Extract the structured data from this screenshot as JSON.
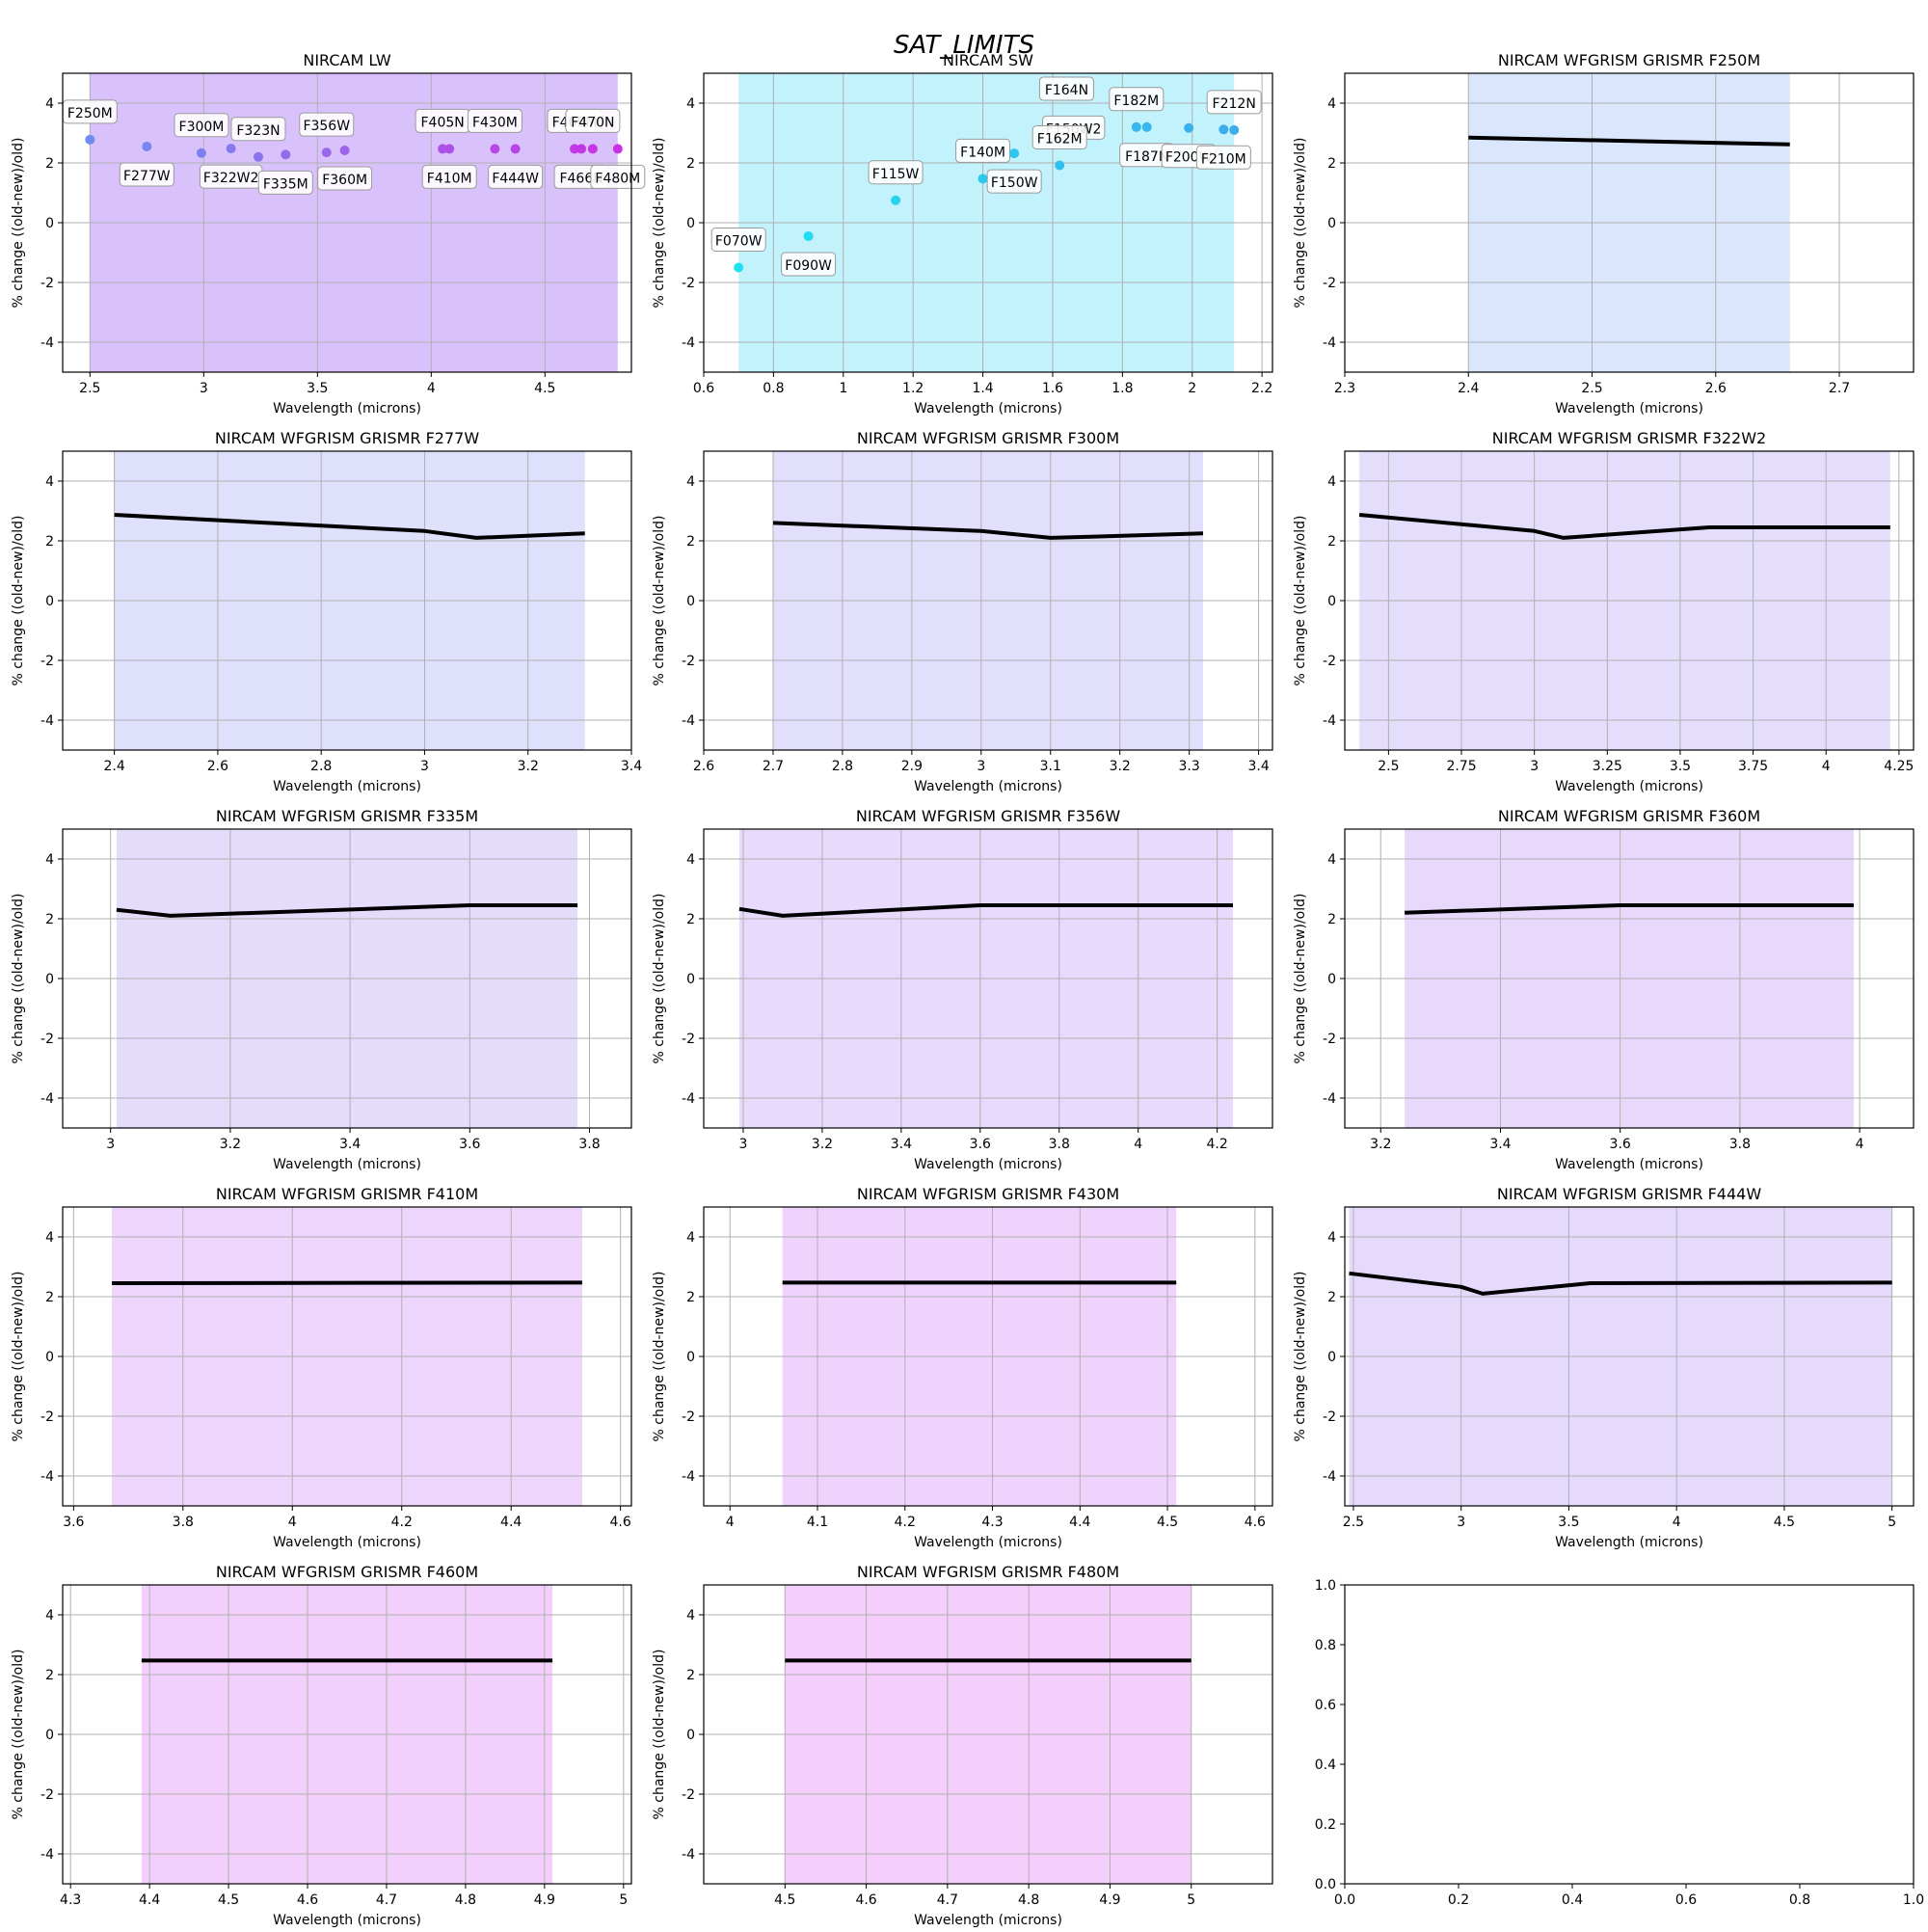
{
  "figure": {
    "title": "SAT_LIMITS"
  },
  "chart_data": [
    {
      "type": "scatter",
      "title": "NIRCAM LW",
      "xlabel": "Wavelength (microns)",
      "ylabel": "% change ((old-new)/old)",
      "xlim": [
        2.38,
        4.88
      ],
      "ylim": [
        -5,
        5
      ],
      "xticks": [
        2.5,
        3,
        3.5,
        4,
        4.5
      ],
      "yticks": [
        -4,
        -2,
        0,
        2,
        4
      ],
      "grid": true,
      "span": [
        2.5,
        4.82
      ],
      "span_color": "#c9a8fb",
      "points": [
        {
          "x": 2.5,
          "y": 2.78,
          "label": "F250M",
          "pos": "above",
          "color": "#6f8cf0"
        },
        {
          "x": 2.75,
          "y": 2.55,
          "label": "F277W",
          "pos": "below",
          "color": "#7787ef"
        },
        {
          "x": 2.99,
          "y": 2.33,
          "label": "F300M",
          "pos": "above",
          "color": "#7f7eee"
        },
        {
          "x": 3.12,
          "y": 2.48,
          "label": "F322W2",
          "pos": "below",
          "color": "#8579ed"
        },
        {
          "x": 3.24,
          "y": 2.2,
          "label": "F323N",
          "pos": "above",
          "color": "#8b73ec"
        },
        {
          "x": 3.36,
          "y": 2.28,
          "label": "F335M",
          "pos": "below",
          "color": "#916deb"
        },
        {
          "x": 3.54,
          "y": 2.35,
          "label": "F356W",
          "pos": "above",
          "color": "#9867ea"
        },
        {
          "x": 3.62,
          "y": 2.42,
          "label": "F360M",
          "pos": "below",
          "color": "#9c62e9"
        },
        {
          "x": 4.05,
          "y": 2.47,
          "label": "F405N",
          "pos": "above",
          "color": "#ab52e8"
        },
        {
          "x": 4.08,
          "y": 2.47,
          "label": "F410M",
          "pos": "below",
          "color": "#ac51e8"
        },
        {
          "x": 4.28,
          "y": 2.47,
          "label": "F430M",
          "pos": "above",
          "color": "#b548e7"
        },
        {
          "x": 4.37,
          "y": 2.47,
          "label": "F444W",
          "pos": "below",
          "color": "#b944e6"
        },
        {
          "x": 4.63,
          "y": 2.47,
          "label": "F460M",
          "pos": "above",
          "color": "#c23ae5"
        },
        {
          "x": 4.66,
          "y": 2.47,
          "label": "F466N",
          "pos": "below",
          "color": "#c338e5"
        },
        {
          "x": 4.71,
          "y": 2.47,
          "label": "F470N",
          "pos": "above",
          "color": "#c635e5"
        },
        {
          "x": 4.82,
          "y": 2.47,
          "label": "F480M",
          "pos": "below",
          "color": "#ca30e4"
        }
      ]
    },
    {
      "type": "scatter",
      "title": "NIRCAM SW",
      "xlabel": "Wavelength (microns)",
      "ylabel": "% change ((old-new)/old)",
      "xlim": [
        0.6,
        2.23
      ],
      "ylim": [
        -5,
        5
      ],
      "xticks": [
        0.6,
        0.8,
        1,
        1.2,
        1.4,
        1.6,
        1.8,
        2,
        2.2
      ],
      "yticks": [
        -4,
        -2,
        0,
        2,
        4
      ],
      "grid": true,
      "span": [
        0.7,
        2.12
      ],
      "span_color": "#a8ecfb",
      "points": [
        {
          "x": 0.7,
          "y": -1.5,
          "label": "F070W",
          "pos": "above",
          "color": "#1ce3f0"
        },
        {
          "x": 0.9,
          "y": -0.45,
          "label": "F090W",
          "pos": "below",
          "color": "#20dcef"
        },
        {
          "x": 1.15,
          "y": 0.75,
          "label": "F115W",
          "pos": "above",
          "color": "#25d3ef"
        },
        {
          "x": 1.4,
          "y": 1.47,
          "label": "F140M",
          "pos": "above",
          "color": "#2bc9ee"
        },
        {
          "x": 1.49,
          "y": 2.32,
          "label": "F150W",
          "pos": "below",
          "color": "#2ec5ee"
        },
        {
          "x": 1.64,
          "y": 4.45,
          "label": "F164N",
          "pos": "none",
          "color": "#2bc9ee"
        },
        {
          "x": 1.66,
          "y": 3.15,
          "label": "F150W2",
          "pos": "none",
          "color": "#2bc9ee"
        },
        {
          "x": 1.62,
          "y": 1.92,
          "label": "F162M",
          "pos": "above",
          "color": "#31c0ed"
        },
        {
          "x": 1.84,
          "y": 3.2,
          "label": "F182M",
          "pos": "above",
          "color": "#37b8ed"
        },
        {
          "x": 1.87,
          "y": 3.2,
          "label": "F187N",
          "pos": "below",
          "color": "#38b6ed"
        },
        {
          "x": 1.99,
          "y": 3.17,
          "label": "F200W",
          "pos": "below",
          "color": "#3bb1ec"
        },
        {
          "x": 2.09,
          "y": 3.12,
          "label": "F210M",
          "pos": "below",
          "color": "#3eadec"
        },
        {
          "x": 2.12,
          "y": 3.1,
          "label": "F212N",
          "pos": "above",
          "color": "#3facec"
        }
      ]
    },
    {
      "type": "line",
      "title": "NIRCAM WFGRISM GRISMR F250M",
      "xlabel": "Wavelength (microns)",
      "ylabel": "% change ((old-new)/old)",
      "xlim": [
        2.3,
        2.76
      ],
      "ylim": [
        -5,
        5
      ],
      "xticks": [
        2.3,
        2.4,
        2.5,
        2.6,
        2.7
      ],
      "yticks": [
        -4,
        -2,
        0,
        2,
        4
      ],
      "grid": true,
      "span": [
        2.4,
        2.66
      ],
      "span_color": "#c9dbfb",
      "x": [
        2.4,
        2.66
      ],
      "y": [
        2.85,
        2.62
      ]
    },
    {
      "type": "line",
      "title": "NIRCAM WFGRISM GRISMR F277W",
      "xlabel": "Wavelength (microns)",
      "ylabel": "% change ((old-new)/old)",
      "xlim": [
        2.3,
        3.4
      ],
      "ylim": [
        -5,
        5
      ],
      "xticks": [
        2.4,
        2.6,
        2.8,
        3,
        3.2,
        3.4
      ],
      "yticks": [
        -4,
        -2,
        0,
        2,
        4
      ],
      "grid": true,
      "span": [
        2.4,
        3.31
      ],
      "span_color": "#d2d3fb",
      "x": [
        2.4,
        3.0,
        3.1,
        3.31
      ],
      "y": [
        2.87,
        2.33,
        2.1,
        2.25
      ]
    },
    {
      "type": "line",
      "title": "NIRCAM WFGRISM GRISMR F300M",
      "xlabel": "Wavelength (microns)",
      "ylabel": "% change ((old-new)/old)",
      "xlim": [
        2.6,
        3.42
      ],
      "ylim": [
        -5,
        5
      ],
      "xticks": [
        2.6,
        2.7,
        2.8,
        2.9,
        3,
        3.1,
        3.2,
        3.3,
        3.4
      ],
      "yticks": [
        -4,
        -2,
        0,
        2,
        4
      ],
      "grid": true,
      "span": [
        2.7,
        3.32
      ],
      "span_color": "#d5d2fb",
      "x": [
        2.7,
        3.0,
        3.1,
        3.32
      ],
      "y": [
        2.6,
        2.33,
        2.1,
        2.25
      ]
    },
    {
      "type": "line",
      "title": "NIRCAM WFGRISM GRISMR F322W2",
      "xlabel": "Wavelength (microns)",
      "ylabel": "% change ((old-new)/old)",
      "xlim": [
        2.35,
        4.3
      ],
      "ylim": [
        -5,
        5
      ],
      "xticks": [
        2.5,
        2.75,
        3,
        3.25,
        3.5,
        3.75,
        4,
        4.25
      ],
      "yticks": [
        -4,
        -2,
        0,
        2,
        4
      ],
      "grid": true,
      "span": [
        2.4,
        4.22
      ],
      "span_color": "#d8cefb",
      "x": [
        2.4,
        3.0,
        3.1,
        3.6,
        4.22
      ],
      "y": [
        2.87,
        2.33,
        2.1,
        2.45,
        2.45
      ]
    },
    {
      "type": "line",
      "title": "NIRCAM WFGRISM GRISMR F335M",
      "xlabel": "Wavelength (microns)",
      "ylabel": "% change ((old-new)/old)",
      "xlim": [
        2.92,
        3.87
      ],
      "ylim": [
        -5,
        5
      ],
      "xticks": [
        3,
        3.2,
        3.4,
        3.6,
        3.8
      ],
      "yticks": [
        -4,
        -2,
        0,
        2,
        4
      ],
      "grid": true,
      "span": [
        3.01,
        3.78
      ],
      "span_color": "#dacdfb",
      "x": [
        3.01,
        3.1,
        3.6,
        3.78
      ],
      "y": [
        2.3,
        2.1,
        2.45,
        2.45
      ]
    },
    {
      "type": "line",
      "title": "NIRCAM WFGRISM GRISMR F356W",
      "xlabel": "Wavelength (microns)",
      "ylabel": "% change ((old-new)/old)",
      "xlim": [
        2.9,
        4.34
      ],
      "ylim": [
        -5,
        5
      ],
      "xticks": [
        3,
        3.2,
        3.4,
        3.6,
        3.8,
        4,
        4.2
      ],
      "yticks": [
        -4,
        -2,
        0,
        2,
        4
      ],
      "grid": true,
      "span": [
        2.99,
        4.24
      ],
      "span_color": "#ddcbfb",
      "x": [
        2.99,
        3.1,
        3.6,
        4.24
      ],
      "y": [
        2.33,
        2.1,
        2.45,
        2.45
      ]
    },
    {
      "type": "line",
      "title": "NIRCAM WFGRISM GRISMR F360M",
      "xlabel": "Wavelength (microns)",
      "ylabel": "% change ((old-new)/old)",
      "xlim": [
        3.14,
        4.09
      ],
      "ylim": [
        -5,
        5
      ],
      "xticks": [
        3.2,
        3.4,
        3.6,
        3.8,
        4
      ],
      "yticks": [
        -4,
        -2,
        0,
        2,
        4
      ],
      "grid": true,
      "span": [
        3.24,
        3.99
      ],
      "span_color": "#dec9fb",
      "x": [
        3.24,
        3.6,
        3.99
      ],
      "y": [
        2.2,
        2.45,
        2.45
      ]
    },
    {
      "type": "line",
      "title": "NIRCAM WFGRISM GRISMR F410M",
      "xlabel": "Wavelength (microns)",
      "ylabel": "% change ((old-new)/old)",
      "xlim": [
        3.58,
        4.62
      ],
      "ylim": [
        -5,
        5
      ],
      "xticks": [
        3.6,
        3.8,
        4,
        4.2,
        4.4,
        4.6
      ],
      "yticks": [
        -4,
        -2,
        0,
        2,
        4
      ],
      "grid": true,
      "span": [
        3.67,
        4.53
      ],
      "span_color": "#e6c3fb",
      "x": [
        3.67,
        4.53
      ],
      "y": [
        2.45,
        2.47
      ]
    },
    {
      "type": "line",
      "title": "NIRCAM WFGRISM GRISMR F430M",
      "xlabel": "Wavelength (microns)",
      "ylabel": "% change ((old-new)/old)",
      "xlim": [
        3.97,
        4.62
      ],
      "ylim": [
        -5,
        5
      ],
      "xticks": [
        4,
        4.1,
        4.2,
        4.3,
        4.4,
        4.5,
        4.6
      ],
      "yticks": [
        -4,
        -2,
        0,
        2,
        4
      ],
      "grid": true,
      "span": [
        4.06,
        4.51
      ],
      "span_color": "#e9c0fb",
      "x": [
        4.06,
        4.51
      ],
      "y": [
        2.47,
        2.47
      ]
    },
    {
      "type": "line",
      "title": "NIRCAM WFGRISM GRISMR F444W",
      "xlabel": "Wavelength (microns)",
      "ylabel": "% change ((old-new)/old)",
      "xlim": [
        2.46,
        5.1
      ],
      "ylim": [
        -5,
        5
      ],
      "xticks": [
        2.5,
        3,
        3.5,
        4,
        4.5,
        5
      ],
      "yticks": [
        -4,
        -2,
        0,
        2,
        4
      ],
      "grid": true,
      "span": [
        2.48,
        5.0
      ],
      "span_color": "#dbcbfb",
      "x": [
        2.48,
        3.0,
        3.1,
        3.6,
        5.0
      ],
      "y": [
        2.78,
        2.33,
        2.1,
        2.45,
        2.47
      ]
    },
    {
      "type": "line",
      "title": "NIRCAM WFGRISM GRISMR F460M",
      "xlabel": "Wavelength (microns)",
      "ylabel": "% change ((old-new)/old)",
      "xlim": [
        4.29,
        5.01
      ],
      "ylim": [
        -5,
        5
      ],
      "xticks": [
        4.3,
        4.4,
        4.5,
        4.6,
        4.7,
        4.8,
        4.9,
        5
      ],
      "yticks": [
        -4,
        -2,
        0,
        2,
        4
      ],
      "grid": true,
      "span": [
        4.39,
        4.91
      ],
      "span_color": "#eebcfb",
      "x": [
        4.39,
        4.91
      ],
      "y": [
        2.47,
        2.47
      ]
    },
    {
      "type": "line",
      "title": "NIRCAM WFGRISM GRISMR F480M",
      "xlabel": "Wavelength (microns)",
      "ylabel": "% change ((old-new)/old)",
      "xlim": [
        4.4,
        5.1
      ],
      "ylim": [
        -5,
        5
      ],
      "xticks": [
        4.5,
        4.6,
        4.7,
        4.8,
        4.9,
        5
      ],
      "yticks": [
        -4,
        -2,
        0,
        2,
        4
      ],
      "grid": true,
      "span": [
        4.5,
        5.0
      ],
      "span_color": "#f1bafb",
      "x": [
        4.5,
        5.0
      ],
      "y": [
        2.47,
        2.47
      ]
    },
    {
      "type": "empty",
      "title": "",
      "xlim": [
        0,
        1
      ],
      "ylim": [
        0,
        1
      ],
      "xticks": [
        0.0,
        0.2,
        0.4,
        0.6,
        0.8,
        1.0
      ],
      "yticks": [
        0.0,
        0.2,
        0.4,
        0.6,
        0.8,
        1.0
      ],
      "grid": false
    }
  ]
}
